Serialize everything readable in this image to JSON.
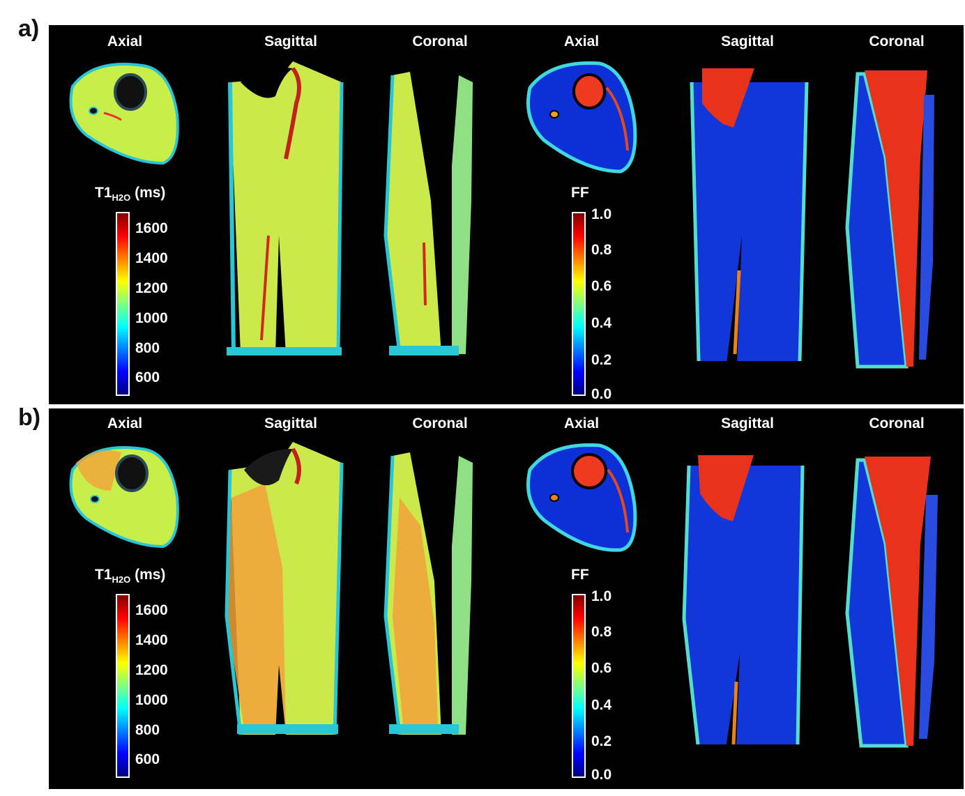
{
  "panels": [
    {
      "letter": "a)",
      "views": [
        "Axial",
        "Sagittal",
        "Coronal",
        "Axial",
        "Sagittal",
        "Coronal"
      ],
      "t1_colorbar": {
        "title_main": "T1",
        "title_sub": "H2O",
        "title_unit": " (ms)",
        "ticks": [
          "1600",
          "1400",
          "1200",
          "1000",
          "800",
          "600"
        ]
      },
      "ff_colorbar": {
        "title": "FF",
        "ticks": [
          "1.0",
          "0.8",
          "0.6",
          "0.4",
          "0.2",
          "0.0"
        ]
      }
    },
    {
      "letter": "b)",
      "views": [
        "Axial",
        "Sagittal",
        "Coronal",
        "Axial",
        "Sagittal",
        "Coronal"
      ],
      "t1_colorbar": {
        "title_main": "T1",
        "title_sub": "H2O",
        "title_unit": " (ms)",
        "ticks": [
          "1600",
          "1400",
          "1200",
          "1000",
          "800",
          "600"
        ]
      },
      "ff_colorbar": {
        "title": "FF",
        "ticks": [
          "1.0",
          "0.8",
          "0.6",
          "0.4",
          "0.2",
          "0.0"
        ]
      }
    }
  ],
  "colormap": {
    "jet": [
      "#00007f",
      "#0000ff",
      "#007fff",
      "#00ffff",
      "#7fff7f",
      "#ffff00",
      "#ff7f00",
      "#ff0000",
      "#7f0000"
    ]
  }
}
